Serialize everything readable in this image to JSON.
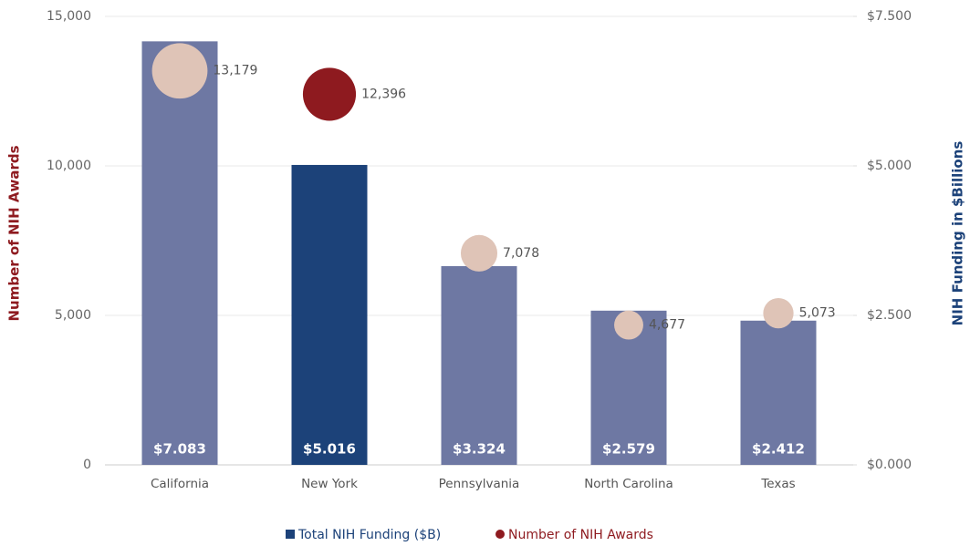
{
  "chart_data": {
    "type": "bar_bubble",
    "categories": [
      "California",
      "New York",
      "Pennsylvania",
      "North Carolina",
      "Texas"
    ],
    "series": [
      {
        "name": "Total NIH Funding ($B)",
        "color": "#1c4279",
        "axis": "y2",
        "colors": [
          "#6e78a3",
          "#1c4279",
          "#6e78a3",
          "#6e78a3",
          "#6e78a3"
        ],
        "values": [
          7.083,
          5.016,
          3.324,
          2.579,
          2.412
        ],
        "value_labels": [
          "$7.083",
          "$5.016",
          "$3.324",
          "$2.579",
          "$2.412"
        ]
      },
      {
        "name": "Number of NIH Awards",
        "color": "#8e1a1f",
        "colors": [
          "#dfc4b7",
          "#8e1a1f",
          "#dfc4b7",
          "#dfc4b7",
          "#dfc4b7"
        ],
        "values": [
          13179,
          12396,
          7078,
          4677,
          5073
        ],
        "value_labels": [
          "13,179",
          "12,396",
          "7,078",
          "4,677",
          "5,073"
        ]
      }
    ],
    "y_label": "Number of NIH Awards",
    "y2_label": "NIH Funding in $Billions",
    "ylim": [
      0,
      15000
    ],
    "yticks": [
      0,
      {
        "value": 5000,
        "label": "5,000"
      },
      {
        "value": 10000,
        "label": "10,000"
      },
      {
        "value": 15000,
        "label": "15,000"
      }
    ],
    "y2lim": [
      0,
      7.5
    ],
    "y2ticks": [
      {
        "value": 0,
        "label": "$0.000"
      },
      {
        "value": 2.5,
        "label": "$2.500"
      },
      {
        "value": 5,
        "label": "$5.000"
      },
      {
        "value": 7.5,
        "label": "$7.500"
      }
    ],
    "grid": true,
    "legend": "bottom"
  }
}
